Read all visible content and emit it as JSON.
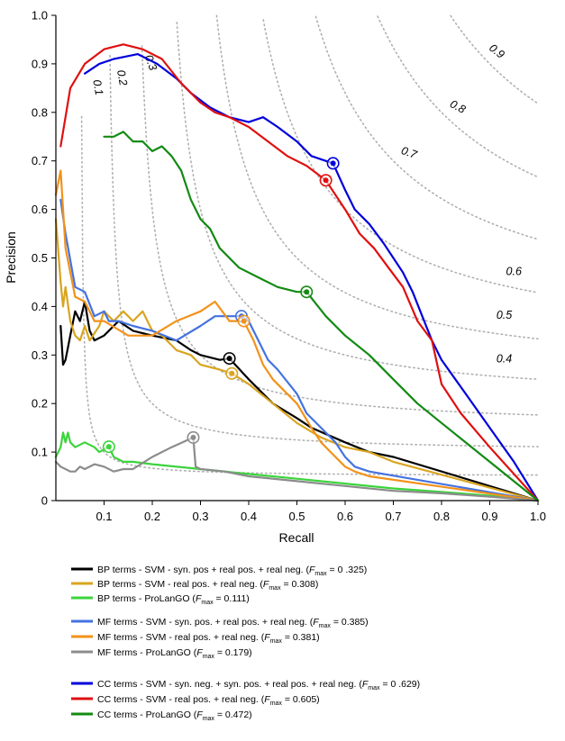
{
  "chart_data": {
    "type": "line",
    "title": "",
    "xlabel": "Recall",
    "ylabel": "Precision",
    "xlim": [
      0,
      1
    ],
    "ylim": [
      0,
      1
    ],
    "x_ticks": [
      "0.1",
      "0.2",
      "0.3",
      "0.4",
      "0.5",
      "0.6",
      "0.7",
      "0.8",
      "0.9",
      "1.0"
    ],
    "y_ticks": [
      "0",
      "0.1",
      "0.2",
      "0.3",
      "0.4",
      "0.5",
      "0.6",
      "0.7",
      "0.8",
      "0.9",
      "1.0"
    ],
    "iso_f_curves": [
      {
        "f": 0.1,
        "label": "0.1"
      },
      {
        "f": 0.2,
        "label": "0.2"
      },
      {
        "f": 0.3,
        "label": "0.3"
      },
      {
        "f": 0.4,
        "label": "0.4"
      },
      {
        "f": 0.5,
        "label": "0.5"
      },
      {
        "f": 0.6,
        "label": "0.6"
      },
      {
        "f": 0.7,
        "label": "0.7"
      },
      {
        "f": 0.8,
        "label": "0.8"
      },
      {
        "f": 0.9,
        "label": "0.9"
      }
    ],
    "series": [
      {
        "id": "bp-svm-syn",
        "color": "#000000",
        "legend": {
          "pre": "BP terms - SVM - syn. pos + real pos. + real neg. (",
          "value": " = 0 .325)"
        },
        "fmax_point": [
          0.36,
          0.293
        ],
        "points": [
          [
            0.01,
            0.36
          ],
          [
            0.015,
            0.28
          ],
          [
            0.02,
            0.29
          ],
          [
            0.03,
            0.34
          ],
          [
            0.04,
            0.39
          ],
          [
            0.05,
            0.37
          ],
          [
            0.06,
            0.41
          ],
          [
            0.07,
            0.35
          ],
          [
            0.08,
            0.33
          ],
          [
            0.1,
            0.34
          ],
          [
            0.13,
            0.37
          ],
          [
            0.16,
            0.35
          ],
          [
            0.2,
            0.34
          ],
          [
            0.25,
            0.33
          ],
          [
            0.28,
            0.31
          ],
          [
            0.3,
            0.3
          ],
          [
            0.34,
            0.29
          ],
          [
            0.36,
            0.293
          ],
          [
            0.4,
            0.25
          ],
          [
            0.45,
            0.2
          ],
          [
            0.5,
            0.17
          ],
          [
            0.53,
            0.15
          ],
          [
            0.6,
            0.12
          ],
          [
            0.65,
            0.1
          ],
          [
            0.7,
            0.09
          ],
          [
            1.0,
            0.0
          ]
        ]
      },
      {
        "id": "bp-svm-real",
        "color": "#d9a520",
        "legend": {
          "pre": "BP terms - SVM - real pos. + real neg. (",
          "value": " = 0.308)"
        },
        "fmax_point": [
          0.365,
          0.262
        ],
        "points": [
          [
            0.0,
            0.58
          ],
          [
            0.01,
            0.45
          ],
          [
            0.015,
            0.4
          ],
          [
            0.02,
            0.44
          ],
          [
            0.03,
            0.37
          ],
          [
            0.04,
            0.34
          ],
          [
            0.05,
            0.33
          ],
          [
            0.06,
            0.36
          ],
          [
            0.07,
            0.33
          ],
          [
            0.09,
            0.36
          ],
          [
            0.1,
            0.39
          ],
          [
            0.12,
            0.37
          ],
          [
            0.14,
            0.39
          ],
          [
            0.16,
            0.37
          ],
          [
            0.18,
            0.39
          ],
          [
            0.2,
            0.35
          ],
          [
            0.22,
            0.34
          ],
          [
            0.25,
            0.31
          ],
          [
            0.28,
            0.3
          ],
          [
            0.3,
            0.28
          ],
          [
            0.34,
            0.27
          ],
          [
            0.365,
            0.262
          ],
          [
            0.4,
            0.24
          ],
          [
            0.45,
            0.2
          ],
          [
            0.5,
            0.16
          ],
          [
            0.55,
            0.13
          ],
          [
            0.6,
            0.11
          ],
          [
            0.65,
            0.1
          ],
          [
            0.7,
            0.08
          ],
          [
            1.0,
            0.0
          ]
        ]
      },
      {
        "id": "bp-prolango",
        "color": "#3cd43c",
        "legend": {
          "pre": "BP terms - ProLanGO (",
          "value": " = 0.111)"
        },
        "fmax_point": [
          0.11,
          0.111
        ],
        "points": [
          [
            0.0,
            0.09
          ],
          [
            0.01,
            0.11
          ],
          [
            0.015,
            0.14
          ],
          [
            0.02,
            0.12
          ],
          [
            0.025,
            0.14
          ],
          [
            0.03,
            0.12
          ],
          [
            0.04,
            0.11
          ],
          [
            0.06,
            0.12
          ],
          [
            0.08,
            0.11
          ],
          [
            0.09,
            0.1
          ],
          [
            0.11,
            0.111
          ],
          [
            0.12,
            0.09
          ],
          [
            0.14,
            0.08
          ],
          [
            0.16,
            0.08
          ],
          [
            0.2,
            0.075
          ],
          [
            0.3,
            0.065
          ],
          [
            0.4,
            0.055
          ],
          [
            0.5,
            0.045
          ],
          [
            0.6,
            0.035
          ],
          [
            0.7,
            0.025
          ],
          [
            0.8,
            0.018
          ],
          [
            0.9,
            0.01
          ],
          [
            1.0,
            0.0
          ]
        ]
      },
      {
        "id": "mf-svm-syn",
        "color": "#4472e0",
        "legend": {
          "pre": "MF terms - SVM - syn. pos. + real pos. + real neg. (",
          "value": " = 0.385)"
        },
        "fmax_point": [
          0.385,
          0.38
        ],
        "points": [
          [
            0.01,
            0.62
          ],
          [
            0.02,
            0.55
          ],
          [
            0.04,
            0.44
          ],
          [
            0.06,
            0.43
          ],
          [
            0.08,
            0.38
          ],
          [
            0.1,
            0.39
          ],
          [
            0.11,
            0.37
          ],
          [
            0.13,
            0.37
          ],
          [
            0.16,
            0.36
          ],
          [
            0.2,
            0.35
          ],
          [
            0.25,
            0.33
          ],
          [
            0.3,
            0.36
          ],
          [
            0.33,
            0.38
          ],
          [
            0.36,
            0.38
          ],
          [
            0.385,
            0.38
          ],
          [
            0.4,
            0.37
          ],
          [
            0.42,
            0.33
          ],
          [
            0.44,
            0.29
          ],
          [
            0.46,
            0.27
          ],
          [
            0.5,
            0.22
          ],
          [
            0.52,
            0.18
          ],
          [
            0.55,
            0.15
          ],
          [
            0.58,
            0.12
          ],
          [
            0.6,
            0.09
          ],
          [
            0.62,
            0.07
          ],
          [
            0.65,
            0.06
          ],
          [
            1.0,
            0.0
          ]
        ]
      },
      {
        "id": "mf-svm-real",
        "color": "#f2921a",
        "legend": {
          "pre": "MF terms - SVM - real pos. + real neg. (",
          "value": " = 0.381)"
        },
        "fmax_point": [
          0.39,
          0.37
        ],
        "points": [
          [
            0.0,
            0.63
          ],
          [
            0.01,
            0.68
          ],
          [
            0.015,
            0.6
          ],
          [
            0.02,
            0.52
          ],
          [
            0.04,
            0.42
          ],
          [
            0.06,
            0.41
          ],
          [
            0.08,
            0.37
          ],
          [
            0.1,
            0.37
          ],
          [
            0.15,
            0.34
          ],
          [
            0.2,
            0.34
          ],
          [
            0.25,
            0.37
          ],
          [
            0.3,
            0.39
          ],
          [
            0.33,
            0.41
          ],
          [
            0.36,
            0.37
          ],
          [
            0.39,
            0.37
          ],
          [
            0.41,
            0.33
          ],
          [
            0.43,
            0.28
          ],
          [
            0.45,
            0.25
          ],
          [
            0.5,
            0.2
          ],
          [
            0.53,
            0.15
          ],
          [
            0.55,
            0.12
          ],
          [
            0.57,
            0.1
          ],
          [
            0.6,
            0.07
          ],
          [
            0.62,
            0.06
          ],
          [
            0.65,
            0.05
          ],
          [
            1.0,
            0.0
          ]
        ]
      },
      {
        "id": "mf-prolango",
        "color": "#8c8c8c",
        "legend": {
          "pre": "MF terms - ProLanGO (",
          "value": " = 0.179)"
        },
        "fmax_point": [
          0.285,
          0.13
        ],
        "points": [
          [
            0.0,
            0.08
          ],
          [
            0.01,
            0.07
          ],
          [
            0.02,
            0.065
          ],
          [
            0.03,
            0.06
          ],
          [
            0.04,
            0.06
          ],
          [
            0.05,
            0.07
          ],
          [
            0.06,
            0.065
          ],
          [
            0.08,
            0.075
          ],
          [
            0.1,
            0.07
          ],
          [
            0.12,
            0.06
          ],
          [
            0.14,
            0.065
          ],
          [
            0.16,
            0.065
          ],
          [
            0.2,
            0.09
          ],
          [
            0.24,
            0.11
          ],
          [
            0.285,
            0.13
          ],
          [
            0.29,
            0.07
          ],
          [
            0.3,
            0.065
          ],
          [
            0.35,
            0.06
          ],
          [
            0.4,
            0.05
          ],
          [
            0.5,
            0.04
          ],
          [
            0.6,
            0.03
          ],
          [
            0.7,
            0.02
          ],
          [
            0.8,
            0.015
          ],
          [
            0.9,
            0.008
          ],
          [
            1.0,
            0.0
          ]
        ]
      },
      {
        "id": "cc-svm-syn",
        "color": "#0000dc",
        "legend": {
          "pre": "CC terms - SVM - syn. neg. + syn. pos. + real pos. + real neg. (",
          "value": " = 0 .629)"
        },
        "fmax_point": [
          0.575,
          0.695
        ],
        "points": [
          [
            0.06,
            0.88
          ],
          [
            0.09,
            0.9
          ],
          [
            0.12,
            0.91
          ],
          [
            0.17,
            0.92
          ],
          [
            0.21,
            0.9
          ],
          [
            0.25,
            0.87
          ],
          [
            0.28,
            0.84
          ],
          [
            0.32,
            0.81
          ],
          [
            0.36,
            0.79
          ],
          [
            0.4,
            0.78
          ],
          [
            0.43,
            0.79
          ],
          [
            0.46,
            0.77
          ],
          [
            0.5,
            0.74
          ],
          [
            0.53,
            0.71
          ],
          [
            0.575,
            0.695
          ],
          [
            0.6,
            0.64
          ],
          [
            0.62,
            0.6
          ],
          [
            0.65,
            0.57
          ],
          [
            0.68,
            0.53
          ],
          [
            0.7,
            0.5
          ],
          [
            0.72,
            0.47
          ],
          [
            0.74,
            0.43
          ],
          [
            0.76,
            0.38
          ],
          [
            0.78,
            0.33
          ],
          [
            0.8,
            0.29
          ],
          [
            0.85,
            0.22
          ],
          [
            0.9,
            0.15
          ],
          [
            0.95,
            0.08
          ],
          [
            1.0,
            0.0
          ]
        ]
      },
      {
        "id": "cc-svm-real",
        "color": "#e01010",
        "legend": {
          "pre": "CC terms - SVM - real pos. + real neg. (",
          "value": " = 0.605)"
        },
        "fmax_point": [
          0.56,
          0.66
        ],
        "points": [
          [
            0.01,
            0.73
          ],
          [
            0.03,
            0.85
          ],
          [
            0.06,
            0.9
          ],
          [
            0.1,
            0.93
          ],
          [
            0.14,
            0.94
          ],
          [
            0.18,
            0.93
          ],
          [
            0.22,
            0.91
          ],
          [
            0.26,
            0.86
          ],
          [
            0.3,
            0.82
          ],
          [
            0.33,
            0.8
          ],
          [
            0.36,
            0.79
          ],
          [
            0.4,
            0.77
          ],
          [
            0.44,
            0.74
          ],
          [
            0.48,
            0.71
          ],
          [
            0.52,
            0.69
          ],
          [
            0.56,
            0.66
          ],
          [
            0.6,
            0.6
          ],
          [
            0.63,
            0.55
          ],
          [
            0.66,
            0.52
          ],
          [
            0.69,
            0.48
          ],
          [
            0.72,
            0.44
          ],
          [
            0.75,
            0.37
          ],
          [
            0.78,
            0.33
          ],
          [
            0.8,
            0.24
          ],
          [
            0.84,
            0.18
          ],
          [
            0.9,
            0.11
          ],
          [
            1.0,
            0.0
          ]
        ]
      },
      {
        "id": "cc-prolango",
        "color": "#138a13",
        "legend": {
          "pre": "CC terms - ProLanGO (",
          "value": " = 0.472)"
        },
        "fmax_point": [
          0.52,
          0.43
        ],
        "points": [
          [
            0.1,
            0.75
          ],
          [
            0.12,
            0.75
          ],
          [
            0.14,
            0.76
          ],
          [
            0.16,
            0.74
          ],
          [
            0.18,
            0.74
          ],
          [
            0.2,
            0.72
          ],
          [
            0.22,
            0.73
          ],
          [
            0.24,
            0.71
          ],
          [
            0.26,
            0.68
          ],
          [
            0.28,
            0.62
          ],
          [
            0.3,
            0.58
          ],
          [
            0.32,
            0.56
          ],
          [
            0.34,
            0.52
          ],
          [
            0.38,
            0.48
          ],
          [
            0.42,
            0.46
          ],
          [
            0.46,
            0.44
          ],
          [
            0.5,
            0.43
          ],
          [
            0.52,
            0.43
          ],
          [
            0.56,
            0.38
          ],
          [
            0.6,
            0.34
          ],
          [
            0.65,
            0.3
          ],
          [
            0.7,
            0.25
          ],
          [
            0.75,
            0.2
          ],
          [
            0.8,
            0.16
          ],
          [
            0.9,
            0.08
          ],
          [
            1.0,
            0.0
          ]
        ]
      }
    ],
    "legend_sub_main": "F",
    "legend_sub_index": "max",
    "legend_groups": [
      [
        0,
        1,
        2
      ],
      [
        3,
        4,
        5
      ],
      [
        6,
        7,
        8
      ]
    ],
    "legend_placement": "bottom"
  }
}
